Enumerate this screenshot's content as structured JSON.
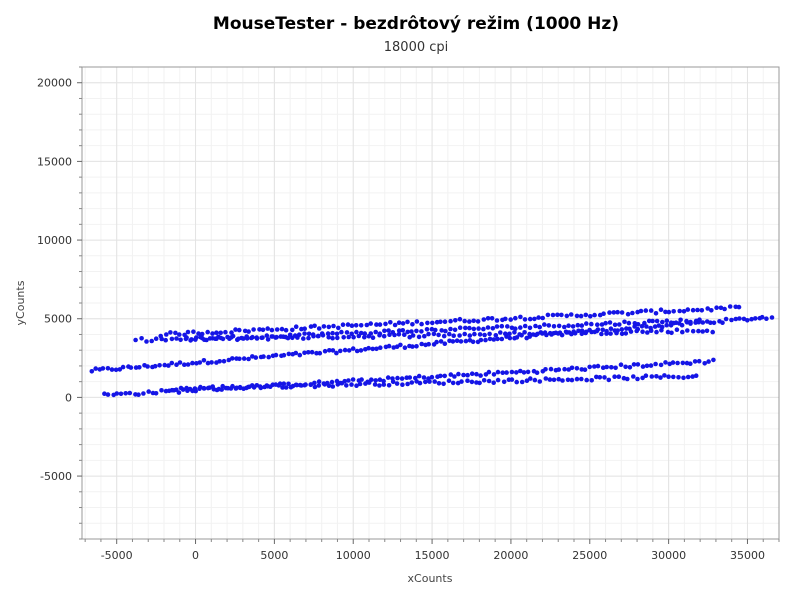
{
  "chart_data": {
    "type": "scatter",
    "title": "MouseTester - bezdrôtový režim (1000 Hz)",
    "subtitle": "18000 cpi",
    "xlabel": "xCounts",
    "ylabel": "yCounts",
    "xlim": [
      -7200,
      37000
    ],
    "ylim": [
      -9000,
      21000
    ],
    "xticks": [
      -5000,
      0,
      5000,
      10000,
      15000,
      20000,
      25000,
      30000,
      35000
    ],
    "yticks": [
      -5000,
      0,
      5000,
      10000,
      15000,
      20000
    ],
    "xtick_labels": [
      "-5000",
      "0",
      "5000",
      "10000",
      "15000",
      "20000",
      "25000",
      "30000",
      "35000"
    ],
    "ytick_labels": [
      "-5000",
      "0",
      "5000",
      "10000",
      "15000",
      "20000"
    ],
    "grid": true,
    "minor_grid": true,
    "point_color": "#1515e6",
    "segments": [
      {
        "x0": -6600,
        "x1": 36500,
        "y0": 1700,
        "y1": 5100,
        "n": 170
      },
      {
        "x0": -2200,
        "x1": 34500,
        "y0": 4000,
        "y1": 5700,
        "n": 125
      },
      {
        "x0": -3800,
        "x1": 32800,
        "y0": 3650,
        "y1": 4250,
        "n": 115
      },
      {
        "x0": -5800,
        "x1": 32800,
        "y0": 150,
        "y1": 2300,
        "n": 140
      },
      {
        "x0": -1500,
        "x1": 31800,
        "y0": 550,
        "y1": 1350,
        "n": 115
      },
      {
        "x0": -600,
        "x1": 32000,
        "y0": 3700,
        "y1": 4900,
        "n": 110
      }
    ]
  }
}
